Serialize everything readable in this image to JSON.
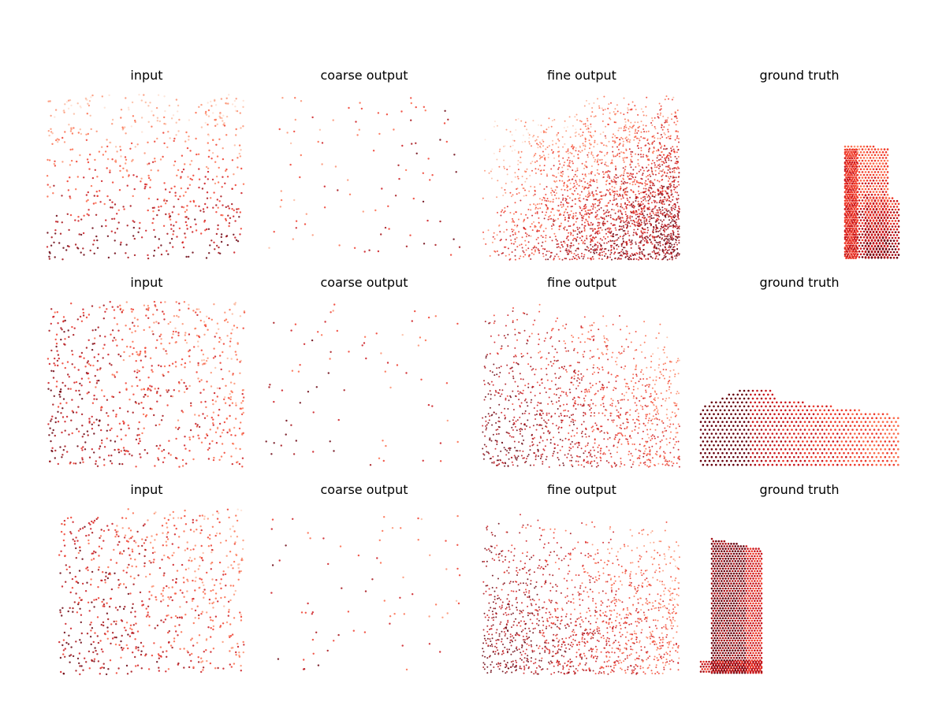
{
  "figure": {
    "column_titles": [
      "input",
      "coarse output",
      "fine output",
      "ground truth"
    ],
    "colormap": [
      "#fee0d2",
      "#fcbba1",
      "#fc9272",
      "#fb6a4a",
      "#ef3b2c",
      "#cb181d",
      "#a50f15",
      "#67000d"
    ]
  },
  "chart_data": [
    {
      "type": "scatter",
      "title": "input",
      "row": 1,
      "col": 1,
      "kind": "sparse",
      "points": 620,
      "bias": "bottom-dark",
      "axes": "off"
    },
    {
      "type": "scatter",
      "title": "coarse output",
      "row": 1,
      "col": 2,
      "kind": "sparse",
      "points": 95,
      "bias": "right-dark",
      "axes": "off"
    },
    {
      "type": "scatter",
      "title": "fine output",
      "row": 1,
      "col": 3,
      "kind": "dense",
      "points": 2600,
      "bias": "bottom-right-dark",
      "axes": "off"
    },
    {
      "type": "scatter",
      "title": "ground truth",
      "row": 1,
      "col": 4,
      "kind": "object",
      "shape": "tall-narrow-right",
      "axes": "off"
    },
    {
      "type": "scatter",
      "title": "input",
      "row": 2,
      "col": 1,
      "kind": "sparse",
      "points": 760,
      "bias": "left-dark",
      "axes": "off"
    },
    {
      "type": "scatter",
      "title": "coarse output",
      "row": 2,
      "col": 2,
      "kind": "sparse",
      "points": 75,
      "bias": "left-dark",
      "axes": "off"
    },
    {
      "type": "scatter",
      "title": "fine output",
      "row": 2,
      "col": 3,
      "kind": "dense",
      "points": 1300,
      "bias": "bottom-left-dark",
      "axes": "off"
    },
    {
      "type": "scatter",
      "title": "ground truth",
      "row": 2,
      "col": 4,
      "kind": "object",
      "shape": "wide-low-box",
      "axes": "off"
    },
    {
      "type": "scatter",
      "title": "input",
      "row": 3,
      "col": 1,
      "kind": "sparse",
      "points": 750,
      "bias": "left-dark",
      "axes": "off"
    },
    {
      "type": "scatter",
      "title": "coarse output",
      "row": 3,
      "col": 2,
      "kind": "sparse",
      "points": 70,
      "bias": "left-dark",
      "axes": "off"
    },
    {
      "type": "scatter",
      "title": "fine output",
      "row": 3,
      "col": 3,
      "kind": "dense",
      "points": 1500,
      "bias": "bottom-left-dark",
      "axes": "off"
    },
    {
      "type": "scatter",
      "title": "ground truth",
      "row": 3,
      "col": 4,
      "kind": "object",
      "shape": "tall-narrow-left",
      "axes": "off"
    }
  ]
}
